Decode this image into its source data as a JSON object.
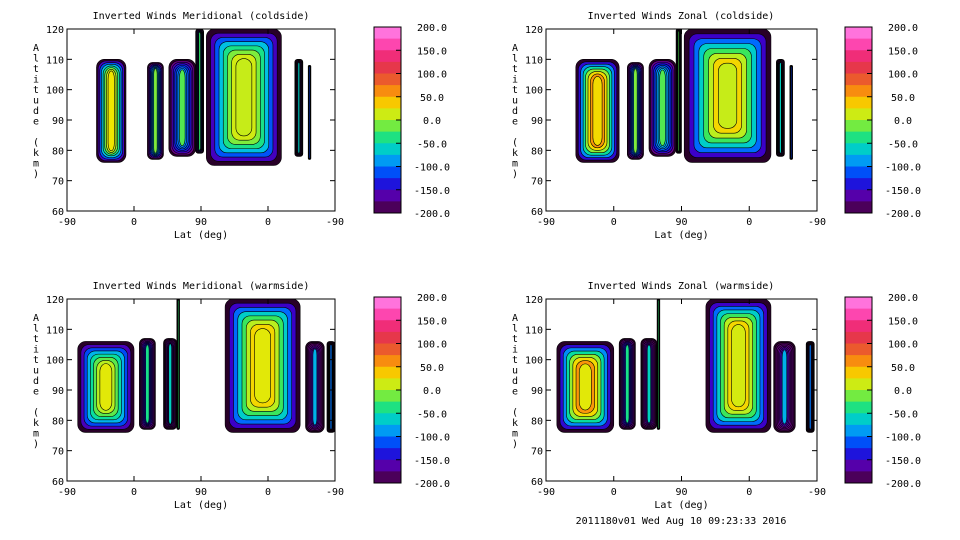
{
  "footer": "2011180v01 Wed Aug 10 09:23:33 2016",
  "chart_data": [
    {
      "type": "heatmap",
      "title": "Inverted Winds Meridional (coldside)",
      "xlabel": "Lat (deg)",
      "ylabel": "Altitude (km)",
      "xticks": [
        "-90",
        "0",
        "90",
        "0",
        "-90"
      ],
      "yticks": [
        "60",
        "70",
        "80",
        "90",
        "100",
        "110",
        "120"
      ],
      "ylim": [
        60,
        120
      ],
      "colorbar": {
        "ticks": [
          "200.0",
          "150.0",
          "100.0",
          "50.0",
          "0.0",
          "-50.0",
          "-100.0",
          "-150.0",
          "-200.0"
        ],
        "range": [
          -200,
          200
        ]
      },
      "blobs": [
        {
          "lat": [
            -60,
            -35
          ],
          "alt": [
            76,
            110
          ],
          "value": 25,
          "peak": 40
        },
        {
          "lat": [
            -14,
            -2
          ],
          "alt": [
            77,
            109
          ],
          "value": -10,
          "peak": -60
        },
        {
          "lat": [
            -85,
            -56
          ],
          "alt": [
            78,
            110
          ],
          "value": -20,
          "peak": -80
        },
        {
          "lat": [
            90,
            64
          ],
          "alt": [
            79,
            120
          ],
          "value": -30,
          "peak": -100
        },
        {
          "lat": [
            62,
            20
          ],
          "alt": [
            75,
            120
          ],
          "value": 10,
          "peak": 40
        },
        {
          "lat": [
            15,
            12
          ],
          "alt": [
            78,
            110
          ],
          "value": -60,
          "peak": -150
        },
        {
          "lat": [
            -30,
            -35
          ],
          "alt": [
            77,
            108
          ],
          "value": -120,
          "peak": -200
        }
      ]
    },
    {
      "type": "heatmap",
      "title": "Inverted Winds Zonal (coldside)",
      "xlabel": "Lat (deg)",
      "ylabel": "Altitude (km)",
      "xticks": [
        "-90",
        "0",
        "90",
        "0",
        "-90"
      ],
      "yticks": [
        "60",
        "70",
        "80",
        "90",
        "100",
        "110",
        "120"
      ],
      "ylim": [
        60,
        120
      ],
      "colorbar": {
        "ticks": [
          "200.0",
          "150.0",
          "100.0",
          "50.0",
          "0.0",
          "-50.0",
          "-100.0",
          "-150.0",
          "-200.0"
        ],
        "range": [
          -200,
          200
        ]
      },
      "blobs": [
        {
          "lat": [
            -60,
            -35
          ],
          "alt": [
            76,
            110
          ],
          "value": 30,
          "peak": 90
        },
        {
          "lat": [
            -14,
            -2
          ],
          "alt": [
            77,
            109
          ],
          "value": -10,
          "peak": -80
        },
        {
          "lat": [
            -85,
            -56
          ],
          "alt": [
            78,
            110
          ],
          "value": -20,
          "peak": -60
        },
        {
          "lat": [
            90,
            64
          ],
          "alt": [
            79,
            120
          ],
          "value": -20,
          "peak": -120
        },
        {
          "lat": [
            62,
            20
          ],
          "alt": [
            76,
            120
          ],
          "value": 10,
          "peak": 60
        },
        {
          "lat": [
            15,
            12
          ],
          "alt": [
            78,
            110
          ],
          "value": -60,
          "peak": -150
        },
        {
          "lat": [
            -30,
            -35
          ],
          "alt": [
            77,
            108
          ],
          "value": -120,
          "peak": -200
        }
      ]
    },
    {
      "type": "heatmap",
      "title": "Inverted Winds Meridional (warmside)",
      "xlabel": "Lat (deg)",
      "ylabel": "Altitude (km)",
      "xticks": [
        "-90",
        "0",
        "90",
        "0",
        "-90"
      ],
      "yticks": [
        "60",
        "70",
        "80",
        "90",
        "100",
        "110",
        "120"
      ],
      "ylim": [
        60,
        120
      ],
      "colorbar": {
        "ticks": [
          "200.0",
          "150.0",
          "100.0",
          "50.0",
          "0.0",
          "-50.0",
          "-100.0",
          "-150.0",
          "-200.0"
        ],
        "range": [
          -200,
          200
        ]
      },
      "blobs": [
        {
          "lat": [
            -80,
            -45
          ],
          "alt": [
            76,
            106
          ],
          "value": 20,
          "peak": 30
        },
        {
          "lat": [
            -15,
            -10
          ],
          "alt": [
            77,
            107
          ],
          "value": -40,
          "peak": -120
        },
        {
          "lat": [
            -30,
            -25
          ],
          "alt": [
            77,
            107
          ],
          "value": -60,
          "peak": -150
        },
        {
          "lat": [
            -1,
            -8
          ],
          "alt": [
            77,
            120
          ],
          "value": -30,
          "peak": -120
        },
        {
          "lat": [
            58,
            15
          ],
          "alt": [
            76,
            120
          ],
          "value": 20,
          "peak": 60
        },
        {
          "lat": [
            -30,
            -40
          ],
          "alt": [
            76,
            106
          ],
          "value": -80,
          "peak": -150
        },
        {
          "lat": [
            -65,
            -70
          ],
          "alt": [
            76,
            106
          ],
          "value": -100,
          "peak": -180
        }
      ]
    },
    {
      "type": "heatmap",
      "title": "Inverted Winds Zonal (warmside)",
      "xlabel": "Lat (deg)",
      "ylabel": "Altitude (km)",
      "xticks": [
        "-90",
        "0",
        "90",
        "0",
        "-90"
      ],
      "yticks": [
        "60",
        "70",
        "80",
        "90",
        "100",
        "110",
        "120"
      ],
      "ylim": [
        60,
        120
      ],
      "colorbar": {
        "ticks": [
          "200.0",
          "150.0",
          "100.0",
          "50.0",
          "0.0",
          "-50.0",
          "-100.0",
          "-150.0",
          "-200.0"
        ],
        "range": [
          -200,
          200
        ]
      },
      "blobs": [
        {
          "lat": [
            -80,
            -45
          ],
          "alt": [
            76,
            106
          ],
          "value": 20,
          "peak": 90
        },
        {
          "lat": [
            -15,
            -10
          ],
          "alt": [
            77,
            107
          ],
          "value": -40,
          "peak": -120
        },
        {
          "lat": [
            -30,
            -25
          ],
          "alt": [
            77,
            107
          ],
          "value": -60,
          "peak": -150
        },
        {
          "lat": [
            -1,
            -8
          ],
          "alt": [
            77,
            120
          ],
          "value": -30,
          "peak": -100
        },
        {
          "lat": [
            58,
            15
          ],
          "alt": [
            76,
            120
          ],
          "value": 15,
          "peak": 60
        },
        {
          "lat": [
            -30,
            -40
          ],
          "alt": [
            76,
            106
          ],
          "value": -80,
          "peak": -150
        },
        {
          "lat": [
            -65,
            -70
          ],
          "alt": [
            76,
            106
          ],
          "value": -100,
          "peak": -180
        }
      ]
    }
  ]
}
